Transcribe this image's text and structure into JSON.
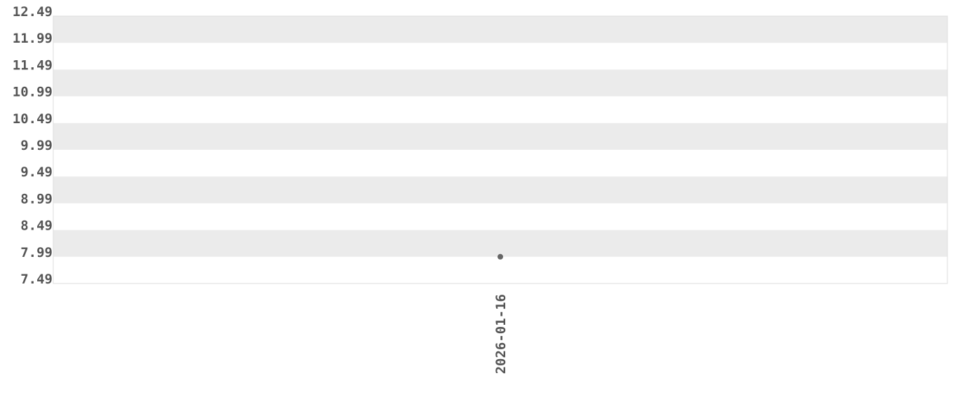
{
  "chart_data": {
    "type": "scatter",
    "title": "",
    "xlabel": "",
    "ylabel": "",
    "ylim": [
      7.49,
      12.49
    ],
    "y_ticks": [
      "12.49",
      "11.99",
      "11.49",
      "10.99",
      "10.49",
      "9.99",
      "9.49",
      "8.99",
      "8.49",
      "7.99",
      "7.49"
    ],
    "x_ticks": [
      "2026-01-16"
    ],
    "grid": "alternating horizontal bands",
    "points": [
      {
        "x": "2026-01-16",
        "y": 7.99
      }
    ],
    "colors": {
      "band": "#ebebeb",
      "point": "#666666",
      "tick_text": "#555555",
      "border": "#dddddd"
    }
  }
}
